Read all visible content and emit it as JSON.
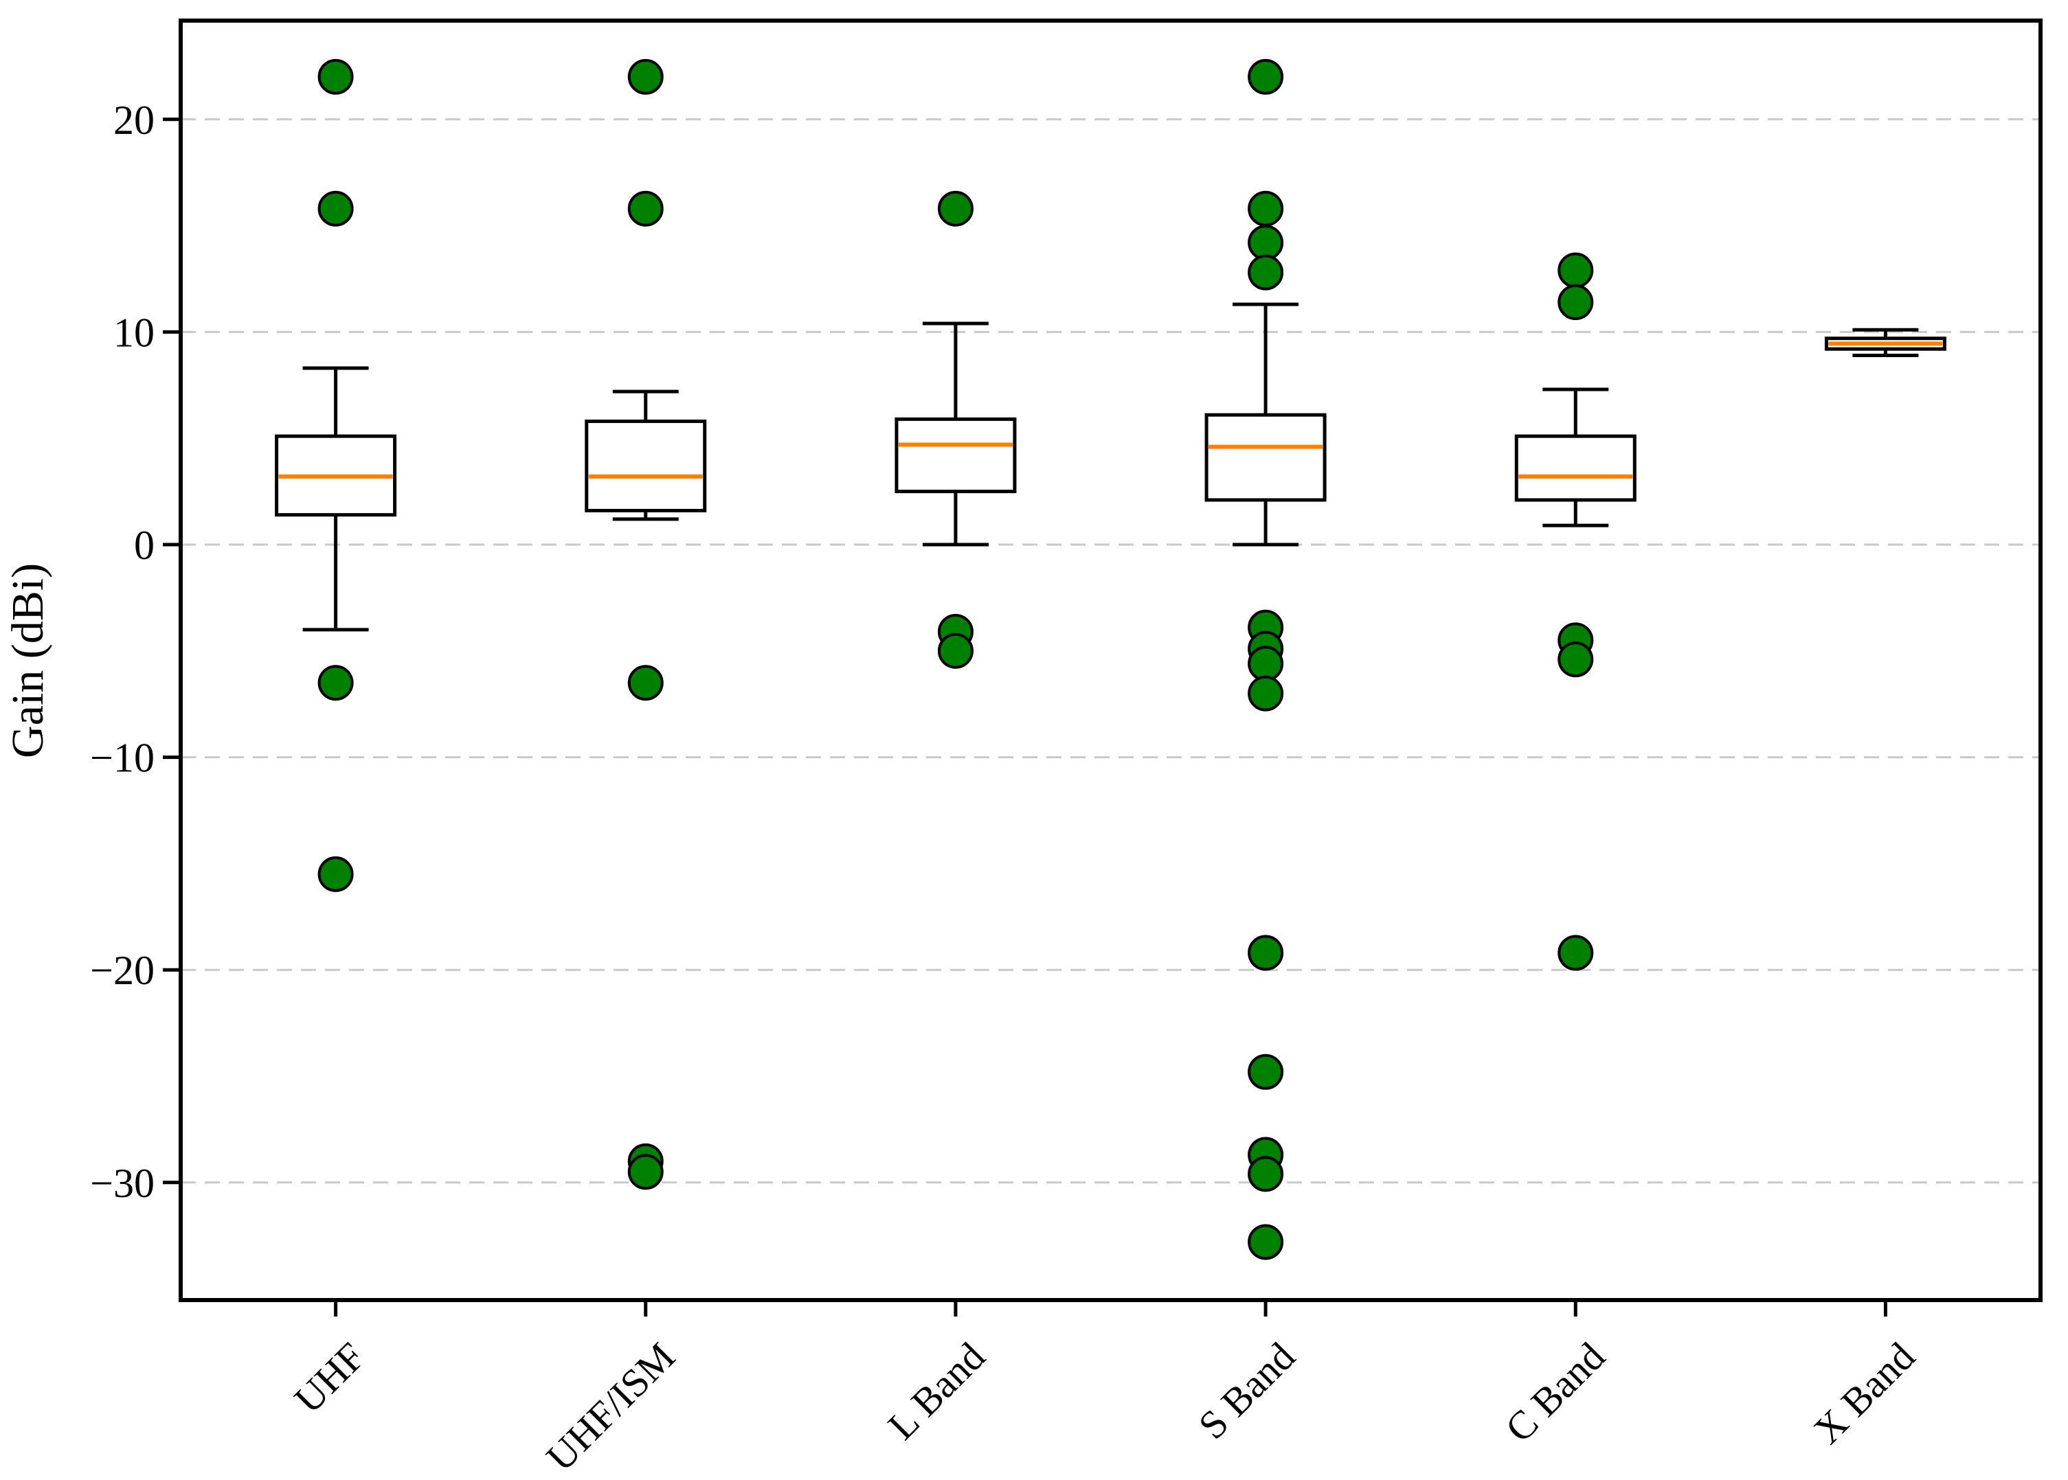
{
  "chart_data": {
    "type": "boxplot",
    "title": "",
    "xlabel": "",
    "ylabel": "Gain (dBi)",
    "categories": [
      "UHF",
      "UHF/ISM",
      "L Band",
      "S Band",
      "C Band",
      "X Band"
    ],
    "yticks": [
      20,
      10,
      0,
      -10,
      -20,
      -30
    ],
    "ylim": [
      -35.5,
      24.6
    ],
    "grid": "horizontal-dashed",
    "legend": "none",
    "series": [
      {
        "name": "UHF",
        "whisker_low": -4.0,
        "q1": 1.4,
        "median": 3.2,
        "q3": 5.1,
        "whisker_high": 8.3,
        "outliers": [
          22.0,
          15.8,
          -6.5,
          -15.5
        ]
      },
      {
        "name": "UHF/ISM",
        "whisker_low": 1.2,
        "q1": 1.6,
        "median": 3.2,
        "q3": 5.8,
        "whisker_high": 7.2,
        "outliers": [
          22.0,
          15.8,
          -6.5,
          -29.0,
          -29.5
        ]
      },
      {
        "name": "L Band",
        "whisker_low": 0.0,
        "q1": 2.5,
        "median": 4.7,
        "q3": 5.9,
        "whisker_high": 10.4,
        "outliers": [
          15.8,
          -4.1,
          -5.0
        ]
      },
      {
        "name": "S Band",
        "whisker_low": 0.0,
        "q1": 2.1,
        "median": 4.6,
        "q3": 6.1,
        "whisker_high": 11.3,
        "outliers": [
          22.0,
          15.8,
          14.2,
          12.8,
          -3.9,
          -4.9,
          -5.6,
          -7.0,
          -19.2,
          -24.8,
          -28.7,
          -29.6,
          -32.8
        ]
      },
      {
        "name": "C Band",
        "whisker_low": 0.9,
        "q1": 2.1,
        "median": 3.2,
        "q3": 5.1,
        "whisker_high": 7.3,
        "outliers": [
          12.9,
          11.4,
          -4.5,
          -5.4,
          -19.2
        ]
      },
      {
        "name": "X Band",
        "whisker_low": 8.9,
        "q1": 9.2,
        "median": 9.45,
        "q3": 9.7,
        "whisker_high": 10.1,
        "outliers": []
      }
    ],
    "colors": {
      "outlier_fill": "#008000",
      "outlier_edge": "#000000",
      "median": "#ff8000",
      "box_edge": "#000000",
      "whisker": "#000000",
      "grid": "#c9c9c9",
      "axis": "#000000",
      "background": "#ffffff"
    }
  }
}
